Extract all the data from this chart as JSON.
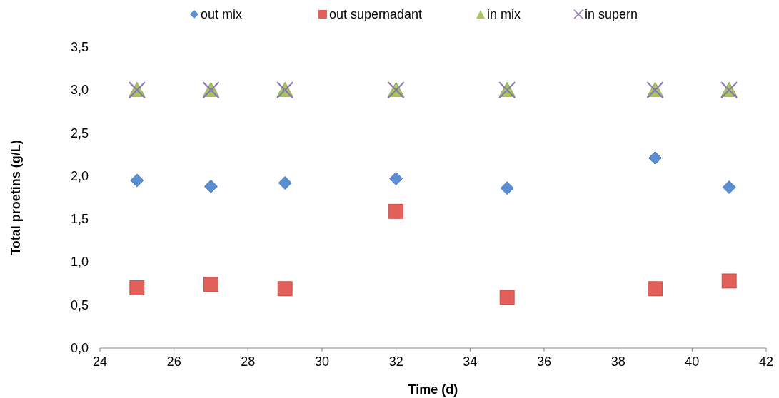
{
  "chart_data": {
    "type": "scatter",
    "xlabel": "Time (d)",
    "ylabel": "Total proetins (g/L)",
    "x": [
      25,
      27,
      29,
      32,
      35,
      39,
      41
    ],
    "series": [
      {
        "name": "out mix",
        "color": "#5b8fd4",
        "marker": "diamond",
        "values": [
          1.95,
          1.88,
          1.92,
          1.97,
          1.86,
          2.21,
          1.87
        ]
      },
      {
        "name": "out supernadant",
        "color": "#e35f5a",
        "marker": "square",
        "values": [
          0.7,
          0.74,
          0.69,
          1.59,
          0.59,
          0.69,
          0.78
        ]
      },
      {
        "name": "in mix",
        "color": "#a5c85a",
        "marker": "triangle",
        "values": [
          3.0,
          3.0,
          3.0,
          3.0,
          3.0,
          3.0,
          3.0
        ]
      },
      {
        "name": "in supern",
        "color": "#8c72b6",
        "marker": "cross",
        "values": [
          3.0,
          3.0,
          3.0,
          3.0,
          3.0,
          3.0,
          3.0
        ]
      }
    ],
    "xlim": [
      24,
      42
    ],
    "xticks": [
      24,
      26,
      28,
      30,
      32,
      34,
      36,
      38,
      40,
      42
    ],
    "ylim": [
      0,
      3.5
    ],
    "yticks": [
      {
        "value": 0,
        "label": "0,0"
      },
      {
        "value": 0.5,
        "label": "0,5"
      },
      {
        "value": 1,
        "label": "1,0"
      },
      {
        "value": 1.5,
        "label": "1,5"
      },
      {
        "value": 2,
        "label": "2,0"
      },
      {
        "value": 2.5,
        "label": "2,5"
      },
      {
        "value": 3,
        "label": "3,0"
      },
      {
        "value": 3.5,
        "label": "3,5"
      }
    ],
    "legend": "top",
    "grid": false
  }
}
